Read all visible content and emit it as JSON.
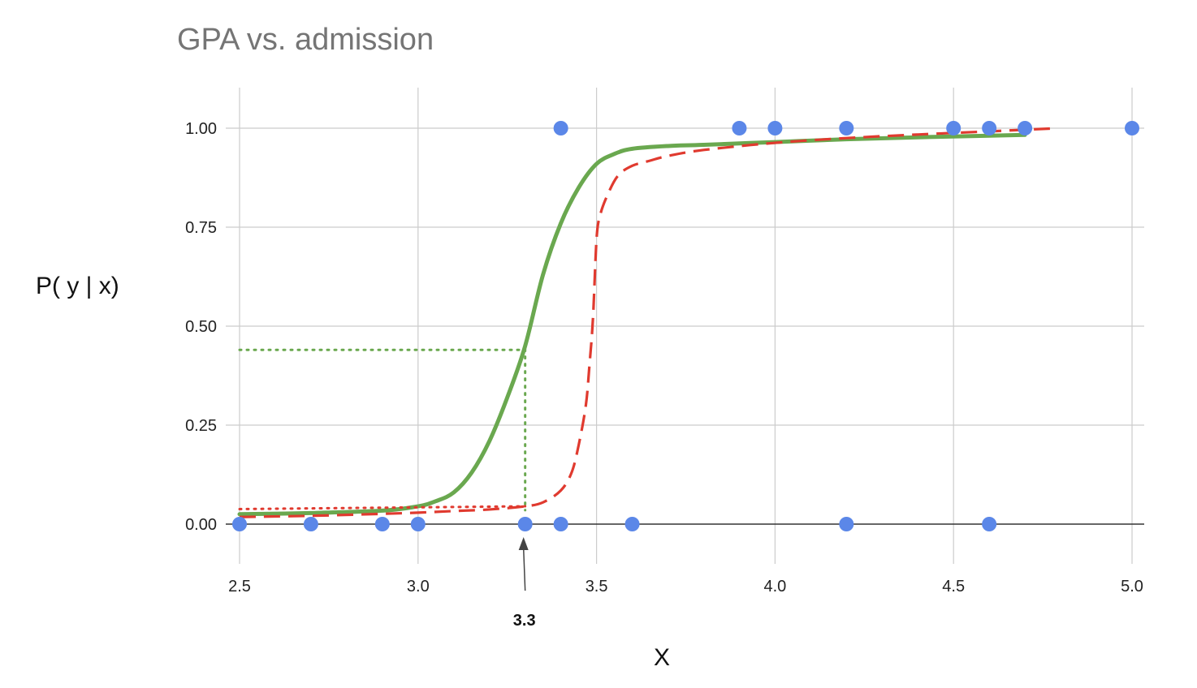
{
  "chart_data": {
    "type": "scatter",
    "title": "GPA vs. admission",
    "xlabel": "X",
    "ylabel": "P( y | x)",
    "xlim": [
      2.5,
      5.0
    ],
    "ylim": [
      -0.1,
      1.1
    ],
    "x_ticks": [
      "2.5",
      "3.0",
      "3.5",
      "4.0",
      "4.5",
      "5.0"
    ],
    "x_tick_values": [
      2.5,
      3.0,
      3.5,
      4.0,
      4.5,
      5.0
    ],
    "y_ticks": [
      "0.00",
      "0.25",
      "0.50",
      "0.75",
      "1.00"
    ],
    "y_tick_values": [
      0,
      0.25,
      0.5,
      0.75,
      1.0
    ],
    "grid": true,
    "series": [
      {
        "type": "scatter",
        "color": "#5b87e8",
        "points": [
          [
            2.5,
            0
          ],
          [
            2.7,
            0
          ],
          [
            2.9,
            0
          ],
          [
            3.0,
            0
          ],
          [
            3.3,
            0
          ],
          [
            3.4,
            0
          ],
          [
            3.6,
            0
          ],
          [
            4.2,
            0
          ],
          [
            4.6,
            0
          ],
          [
            3.4,
            1
          ],
          [
            3.9,
            1
          ],
          [
            4.0,
            1
          ],
          [
            4.2,
            1
          ],
          [
            4.5,
            1
          ],
          [
            4.6,
            1
          ],
          [
            4.7,
            1
          ],
          [
            5.0,
            1
          ]
        ]
      },
      {
        "type": "line",
        "style": "solid",
        "color": "#6aa84f",
        "points": [
          [
            2.5,
            0.025
          ],
          [
            2.7,
            0.028
          ],
          [
            2.9,
            0.034
          ],
          [
            3.0,
            0.045
          ],
          [
            3.05,
            0.058
          ],
          [
            3.1,
            0.08
          ],
          [
            3.15,
            0.13
          ],
          [
            3.2,
            0.21
          ],
          [
            3.25,
            0.32
          ],
          [
            3.3,
            0.45
          ],
          [
            3.35,
            0.63
          ],
          [
            3.4,
            0.76
          ],
          [
            3.45,
            0.85
          ],
          [
            3.5,
            0.91
          ],
          [
            3.55,
            0.935
          ],
          [
            3.6,
            0.948
          ],
          [
            3.7,
            0.955
          ],
          [
            3.8,
            0.958
          ],
          [
            4.0,
            0.965
          ],
          [
            4.2,
            0.972
          ],
          [
            4.4,
            0.977
          ],
          [
            4.6,
            0.981
          ],
          [
            4.7,
            0.983
          ]
        ]
      },
      {
        "type": "line",
        "style": "dashed",
        "color": "#e03a2f",
        "points": [
          [
            2.5,
            0.018
          ],
          [
            2.7,
            0.021
          ],
          [
            2.9,
            0.026
          ],
          [
            3.0,
            0.029
          ],
          [
            3.1,
            0.033
          ],
          [
            3.2,
            0.037
          ],
          [
            3.3,
            0.045
          ],
          [
            3.35,
            0.055
          ],
          [
            3.4,
            0.085
          ],
          [
            3.43,
            0.13
          ],
          [
            3.45,
            0.2
          ],
          [
            3.47,
            0.3
          ],
          [
            3.48,
            0.4
          ],
          [
            3.49,
            0.52
          ],
          [
            3.5,
            0.72
          ],
          [
            3.51,
            0.78
          ],
          [
            3.53,
            0.83
          ],
          [
            3.56,
            0.88
          ],
          [
            3.6,
            0.905
          ],
          [
            3.65,
            0.918
          ],
          [
            3.7,
            0.93
          ],
          [
            3.8,
            0.945
          ],
          [
            4.0,
            0.963
          ],
          [
            4.2,
            0.975
          ],
          [
            4.4,
            0.984
          ],
          [
            4.6,
            0.992
          ],
          [
            4.77,
            0.999
          ]
        ]
      },
      {
        "type": "line",
        "style": "dotted",
        "color": "#e03a2f",
        "points": [
          [
            2.5,
            0.038
          ],
          [
            3.3,
            0.045
          ]
        ]
      },
      {
        "type": "guide",
        "style": "dotted",
        "color": "#6aa84f",
        "points": [
          [
            2.5,
            0.44
          ],
          [
            3.3,
            0.44
          ],
          [
            3.3,
            0.035
          ]
        ]
      }
    ],
    "annotations": [
      {
        "text": "3.3",
        "x": 3.3,
        "arrow": true
      }
    ]
  }
}
